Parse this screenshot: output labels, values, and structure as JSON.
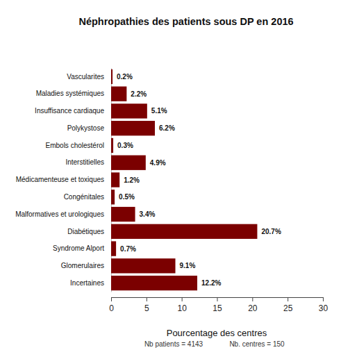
{
  "chart_data": {
    "type": "bar",
    "title": "Néphropathies des patients sous DP en 2016",
    "x_label": "Pourcentage des centres",
    "annotations": [
      "Nb patients = 4143",
      "Nb. centres = 150"
    ],
    "orientation": "horizontal",
    "categories": [
      "Vascularites",
      "Maladies systémiques",
      "Insuffisance cardiaque",
      "Polykystose",
      "Embols cholestérol",
      "Interstitielles",
      "Médicamenteuse et toxiques",
      "Congénitales",
      "Malformatives et urologiques",
      "Diabétiques",
      "Syndrome Alport",
      "Glomerulaires",
      "Incertaines"
    ],
    "values": [
      0.2,
      2.2,
      5.1,
      6.2,
      0.3,
      4.9,
      1.2,
      0.5,
      3.4,
      20.7,
      0.7,
      9.1,
      12.2
    ],
    "value_labels": [
      "0.2%",
      "2.2%",
      "5.1%",
      "6.2%",
      "0.3%",
      "4.9%",
      "1.2%",
      "0.5%",
      "3.4%",
      "20.7%",
      "0.7%",
      "9.1%",
      "12.2%"
    ],
    "data_labels": true,
    "color": "#7b0000",
    "xlim": [
      0,
      30
    ],
    "xticks": [
      0,
      5,
      10,
      15,
      20,
      25,
      30
    ],
    "grid": false
  }
}
